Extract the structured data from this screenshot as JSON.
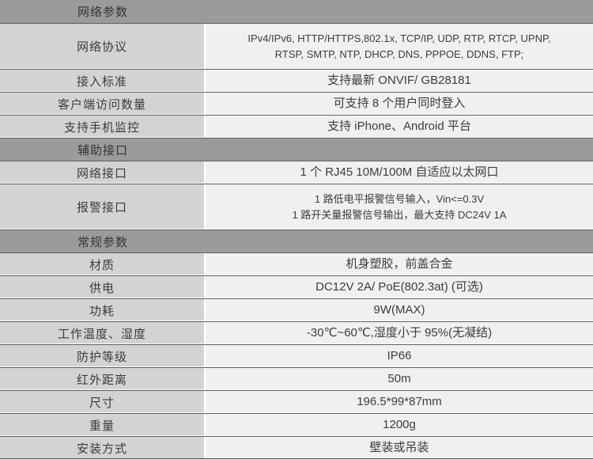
{
  "colors": {
    "section_header_bg": "#9b9b9b",
    "label_column_bg": "#d3d3d3",
    "value_column_bg": "#f0f0f0",
    "row_border": "#5f5f5f",
    "column_divider": "#ffffff",
    "text": "#3c3c3c"
  },
  "table": {
    "sections": [
      {
        "header": "网络参数",
        "rows": [
          {
            "label": "网络协议",
            "value_lines": [
              "IPv4/IPv6, HTTP/HTTPS,802.1x, TCP/IP, UDP, RTP, RTCP, UPNP,",
              "RTSP, SMTP, NTP, DHCP, DNS, PPPOE, DDNS, FTP;"
            ],
            "tall": true,
            "small": true
          },
          {
            "label": "接入标准",
            "value": "支持最新 ONVIF/ GB28181"
          },
          {
            "label": "客户端访问数量",
            "value": "可支持 8 个用户同时登入"
          },
          {
            "label": "支持手机监控",
            "value": "支持 iPhone、Android 平台"
          }
        ]
      },
      {
        "header": "辅助接口",
        "rows": [
          {
            "label": "网络接口",
            "value": "1 个 RJ45 10M/100M 自适应以太网口"
          },
          {
            "label": "报警接口",
            "value_lines": [
              "1 路低电平报警信号输入，Vin<=0.3V",
              "1 路开关量报警信号输出，最大支持 DC24V 1A"
            ],
            "tall": true,
            "small": true
          }
        ]
      },
      {
        "header": "常规参数",
        "rows": [
          {
            "label": "材质",
            "value": "机身塑胶，前盖合金"
          },
          {
            "label": "供电",
            "value": "DC12V 2A/ PoE(802.3at) (可选)"
          },
          {
            "label": "功耗",
            "value": "9W(MAX)"
          },
          {
            "label": "工作温度、湿度",
            "value": "-30℃~60℃,湿度小于 95%(无凝结)"
          },
          {
            "label": "防护等级",
            "value": "IP66"
          },
          {
            "label": "红外距离",
            "value": "50m"
          },
          {
            "label": "尺寸",
            "value": "196.5*99*87mm"
          },
          {
            "label": "重量",
            "value": "1200g"
          },
          {
            "label": "安装方式",
            "value": "壁装或吊装"
          }
        ]
      }
    ]
  }
}
